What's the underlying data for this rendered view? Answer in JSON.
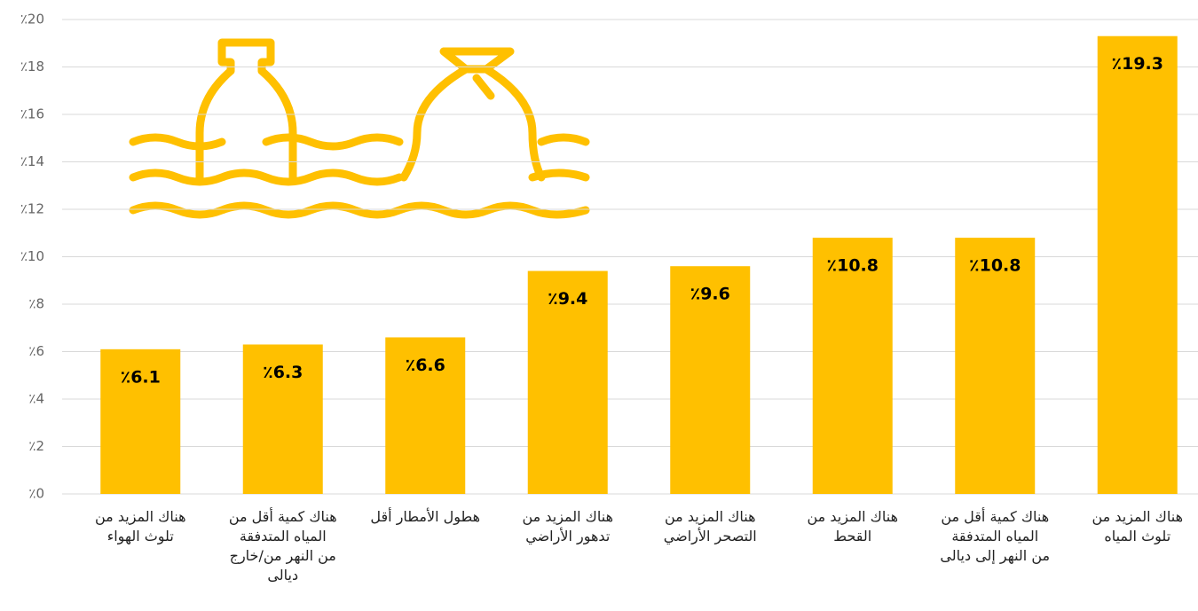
{
  "chart_data": {
    "type": "bar",
    "categories": [
      "هناك المزيد من\nتلوث الهواء",
      "هناك كمية أقل من\nالمياه المتدفقة\nمن النهر من/خارج\nديالى",
      "هطول الأمطار أقل",
      "هناك المزيد من\nتدهور الأراضي",
      "هناك المزيد من\nالتصحر الأراضي",
      "هناك المزيد من\nالقحط",
      "هناك كمية أقل من\nالمياه المتدفقة\nمن النهر إلى ديالى",
      "هناك المزيد من\nتلوث المياه"
    ],
    "values": [
      6.1,
      6.3,
      6.6,
      9.4,
      9.6,
      10.8,
      10.8,
      19.3
    ],
    "value_labels": [
      "٪6.1",
      "٪6.3",
      "٪6.6",
      "٪9.4",
      "٪9.6",
      "٪10.8",
      "٪10.8",
      "٪19.3"
    ],
    "color": "#ffc000",
    "ylim": [
      0,
      20
    ],
    "yticks": [
      {
        "value": 0,
        "label": "٪0"
      },
      {
        "value": 2,
        "label": "٪2"
      },
      {
        "value": 4,
        "label": "٪4"
      },
      {
        "value": 6,
        "label": "٪6"
      },
      {
        "value": 8,
        "label": "٪8"
      },
      {
        "value": 10,
        "label": "٪10"
      },
      {
        "value": 12,
        "label": "٪12"
      },
      {
        "value": 14,
        "label": "٪14"
      },
      {
        "value": 16,
        "label": "٪16"
      },
      {
        "value": 18,
        "label": "٪18"
      },
      {
        "value": 20,
        "label": "٪20"
      }
    ],
    "grid": true
  }
}
